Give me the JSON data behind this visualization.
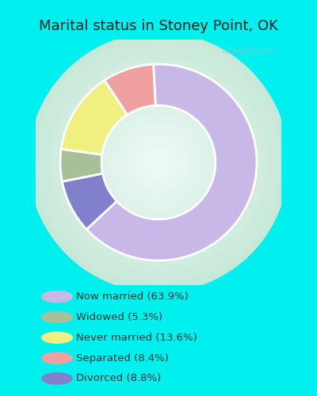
{
  "title": "Marital status in Stoney Point, OK",
  "title_fontsize": 13,
  "title_color": "#222222",
  "bg_cyan": "#00EFEF",
  "chart_bg_gradient_inner": "#f0faf5",
  "chart_bg_gradient_outer": "#c8e8d8",
  "slices": [
    {
      "label": "Now married (63.9%)",
      "value": 63.9,
      "color": "#c8b8e8"
    },
    {
      "label": "Divorced (8.8%)",
      "value": 8.8,
      "color": "#8080cc"
    },
    {
      "label": "Widowed (5.3%)",
      "value": 5.3,
      "color": "#a8c098"
    },
    {
      "label": "Never married (13.6%)",
      "value": 13.6,
      "color": "#f0f080"
    },
    {
      "label": "Separated (8.4%)",
      "value": 8.4,
      "color": "#f0a0a0"
    }
  ],
  "legend_colors": [
    "#c8b8e8",
    "#a8c098",
    "#f0f080",
    "#f0a0a0",
    "#8080cc"
  ],
  "legend_labels": [
    "Now married (63.9%)",
    "Widowed (5.3%)",
    "Never married (13.6%)",
    "Separated (8.4%)",
    "Divorced (8.8%)"
  ],
  "watermark": "City-Data.com",
  "figsize": [
    4.0,
    5.0
  ],
  "dpi": 100
}
